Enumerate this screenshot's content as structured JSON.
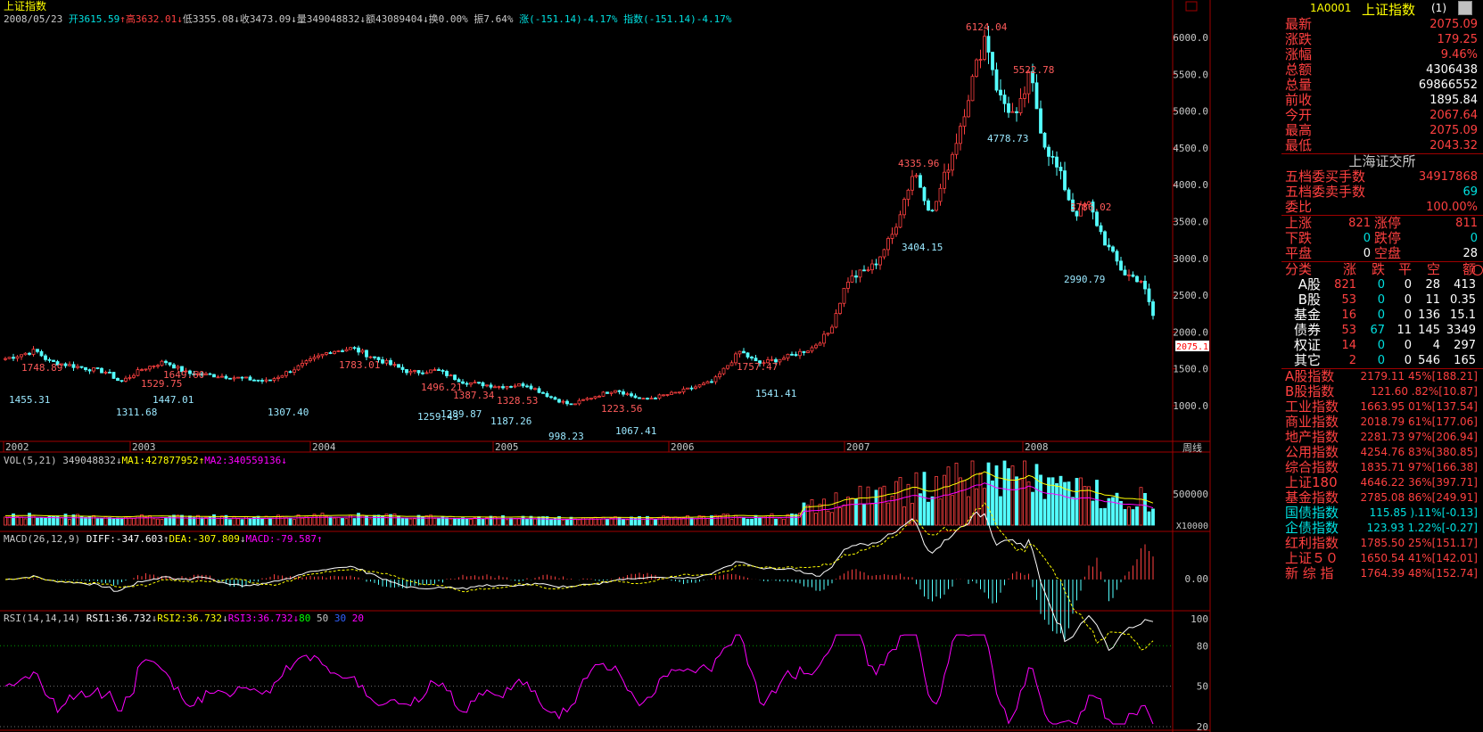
{
  "title": "上证指数",
  "info_bar": {
    "date": "2008/05/23",
    "open_label": "开",
    "open": "3615.59",
    "high_label": "高",
    "high": "3632.01",
    "low_label": "低",
    "low": "3355.08",
    "close_label": "收",
    "close": "3473.09",
    "vol_label": "量",
    "vol": "349048832",
    "amt_label": "额",
    "amt": "43089404",
    "turn_label": "换",
    "turn": "0.00%",
    "amp_label": "振",
    "amp": "7.64%",
    "chg_label": "涨",
    "chg": "(-151.14)-4.17%",
    "idx_label": "指数",
    "idx": "(-151.14)-4.17%"
  },
  "price_axis": [
    "6000.0",
    "5500.0",
    "5000.0",
    "4500.0",
    "4000.0",
    "3500.0",
    "3000.0",
    "2500.0",
    "2000.0",
    "1500.0",
    "1000.0"
  ],
  "current_price_tag": "2075.1",
  "year_axis": [
    "2002",
    "2003",
    "2004",
    "2005",
    "2006",
    "2007",
    "2008"
  ],
  "period_label": "周线",
  "annotations": [
    {
      "text": "1748.89",
      "color": "#ff5a5a"
    },
    {
      "text": "1455.31",
      "color": "#9ae8ff"
    },
    {
      "text": "1529.75",
      "color": "#ff5a5a"
    },
    {
      "text": "1649.60",
      "color": "#ff5a5a"
    },
    {
      "text": "1311.68",
      "color": "#9ae8ff"
    },
    {
      "text": "1447.01",
      "color": "#9ae8ff"
    },
    {
      "text": "1783.01",
      "color": "#ff5a5a"
    },
    {
      "text": "1307.40",
      "color": "#9ae8ff"
    },
    {
      "text": "1496.21",
      "color": "#ff5a5a"
    },
    {
      "text": "1387.34",
      "color": "#ff5a5a"
    },
    {
      "text": "1259.43",
      "color": "#9ae8ff"
    },
    {
      "text": "1289.87",
      "color": "#9ae8ff"
    },
    {
      "text": "1328.53",
      "color": "#ff5a5a"
    },
    {
      "text": "1187.26",
      "color": "#9ae8ff"
    },
    {
      "text": "998.23",
      "color": "#9ae8ff"
    },
    {
      "text": "1223.56",
      "color": "#ff5a5a"
    },
    {
      "text": "1067.41",
      "color": "#9ae8ff"
    },
    {
      "text": "1757.47",
      "color": "#ff5a5a"
    },
    {
      "text": "1541.41",
      "color": "#9ae8ff"
    },
    {
      "text": "4335.96",
      "color": "#ff5a5a"
    },
    {
      "text": "3404.15",
      "color": "#9ae8ff"
    },
    {
      "text": "6124.04",
      "color": "#ff5a5a"
    },
    {
      "text": "5522.78",
      "color": "#ff5a5a"
    },
    {
      "text": "4778.73",
      "color": "#9ae8ff"
    },
    {
      "text": "3786.02",
      "color": "#ff5a5a"
    },
    {
      "text": "2990.79",
      "color": "#9ae8ff"
    }
  ],
  "vol_header": {
    "label": "VOL(5,21)",
    "value": "349048832",
    "ma1": "MA1:427877952",
    "ma2": "MA2:340559136"
  },
  "vol_axis": [
    "500000",
    "X10000"
  ],
  "macd_header": {
    "label": "MACD(26,12,9)",
    "diff": "DIFF:-347.603",
    "dea": "DEA:-307.809",
    "macd": "MACD:-79.587"
  },
  "macd_axis": [
    "0.00"
  ],
  "rsi_header": {
    "label": "RSI(14,14,14)",
    "rsi1": "RSI1:36.732",
    "rsi2": "RSI2:36.732",
    "rsi3": "RSI3:36.732",
    "l80": "80",
    "l50": "50",
    "l30": "30",
    "l20": "20"
  },
  "rsi_axis": [
    "100",
    "80",
    "50",
    "20"
  ],
  "panel": {
    "code": "1A0001",
    "name": "上证指数",
    "suffix": "(1)",
    "quote": [
      {
        "label": "最新",
        "value": "2075.09",
        "color": "#ff4040"
      },
      {
        "label": "涨跌",
        "value": "179.25",
        "color": "#ff4040"
      },
      {
        "label": "涨幅",
        "value": "9.46%",
        "color": "#ff4040"
      },
      {
        "label": "总额",
        "value": "4306438",
        "color": "#ffffff"
      },
      {
        "label": "总量",
        "value": "69866552",
        "color": "#ffffff"
      },
      {
        "label": "前收",
        "value": "1895.84",
        "color": "#ffffff"
      },
      {
        "label": "今开",
        "value": "2067.64",
        "color": "#ff4040"
      },
      {
        "label": "最高",
        "value": "2075.09",
        "color": "#ff4040"
      },
      {
        "label": "最低",
        "value": "2043.32",
        "color": "#ff4040"
      }
    ],
    "exchange": "上海证交所",
    "orders": [
      {
        "label": "五档委买手数",
        "value": "34917868",
        "color": "#ff4040"
      },
      {
        "label": "五档委卖手数",
        "value": "69",
        "color": "#00e0e0"
      },
      {
        "label": "委比",
        "value": "100.00%",
        "color": "#ff4040"
      }
    ],
    "breadth": [
      {
        "l1": "上涨",
        "v1": "821",
        "l2": "涨停",
        "v2": "811",
        "c": "#ff4040"
      },
      {
        "l1": "下跌",
        "v1": "0",
        "l2": "跌停",
        "v2": "0",
        "c": "#00e0e0"
      },
      {
        "l1": "平盘",
        "v1": "0",
        "l2": "空盘",
        "v2": "28",
        "c": "#ffffff"
      }
    ],
    "class_header": [
      "分类",
      "涨",
      "跌",
      "平",
      "空",
      "额"
    ],
    "classes": [
      {
        "name": "A股",
        "up": "821",
        "down": "0",
        "flat": "0",
        "empty": "28",
        "amt": "413"
      },
      {
        "name": "B股",
        "up": "53",
        "down": "0",
        "flat": "0",
        "empty": "11",
        "amt": "0.35"
      },
      {
        "name": "基金",
        "up": "16",
        "down": "0",
        "flat": "0",
        "empty": "136",
        "amt": "15.1"
      },
      {
        "name": "债券",
        "up": "53",
        "down": "67",
        "flat": "11",
        "empty": "145",
        "amt": "3349"
      },
      {
        "name": "权证",
        "up": "14",
        "down": "0",
        "flat": "0",
        "empty": "4",
        "amt": "297"
      },
      {
        "name": "其它",
        "up": "2",
        "down": "0",
        "flat": "0",
        "empty": "546",
        "amt": "165"
      }
    ],
    "indices": [
      {
        "name": "A股指数",
        "value": "2179.11 45%[188.21]",
        "color": "#ff4040"
      },
      {
        "name": "B股指数",
        "value": "121.60 .82%[10.87]",
        "color": "#ff4040"
      },
      {
        "name": "工业指数",
        "value": "1663.95 01%[137.54]",
        "color": "#ff4040"
      },
      {
        "name": "商业指数",
        "value": "2018.79 61%[177.06]",
        "color": "#ff4040"
      },
      {
        "name": "地产指数",
        "value": "2281.73 97%[206.94]",
        "color": "#ff4040"
      },
      {
        "name": "公用指数",
        "value": "4254.76 83%[380.85]",
        "color": "#ff4040"
      },
      {
        "name": "综合指数",
        "value": "1835.71 97%[166.38]",
        "color": "#ff4040"
      },
      {
        "name": "上证180",
        "value": "4646.22 36%[397.71]",
        "color": "#ff4040"
      },
      {
        "name": "基金指数",
        "value": "2785.08 86%[249.91]",
        "color": "#ff4040"
      },
      {
        "name": "国债指数",
        "value": "115.85 ).11%[-0.13]",
        "color": "#00e0e0"
      },
      {
        "name": "企债指数",
        "value": "123.93 1.22%[-0.27]",
        "color": "#00e0e0"
      },
      {
        "name": "红利指数",
        "value": "1785.50 25%[151.17]",
        "color": "#ff4040"
      },
      {
        "name": "上证５０",
        "value": "1650.54 41%[142.01]",
        "color": "#ff4040"
      },
      {
        "name": "新 综 指",
        "value": "1764.39 48%[152.74]",
        "color": "#ff4040"
      }
    ]
  },
  "colors": {
    "up": "#ff4040",
    "down": "#54ffff",
    "grid": "#a00000",
    "ma_white": "#ffffff",
    "ma_yellow": "#ffff00",
    "ma_magenta": "#ff00ff"
  }
}
